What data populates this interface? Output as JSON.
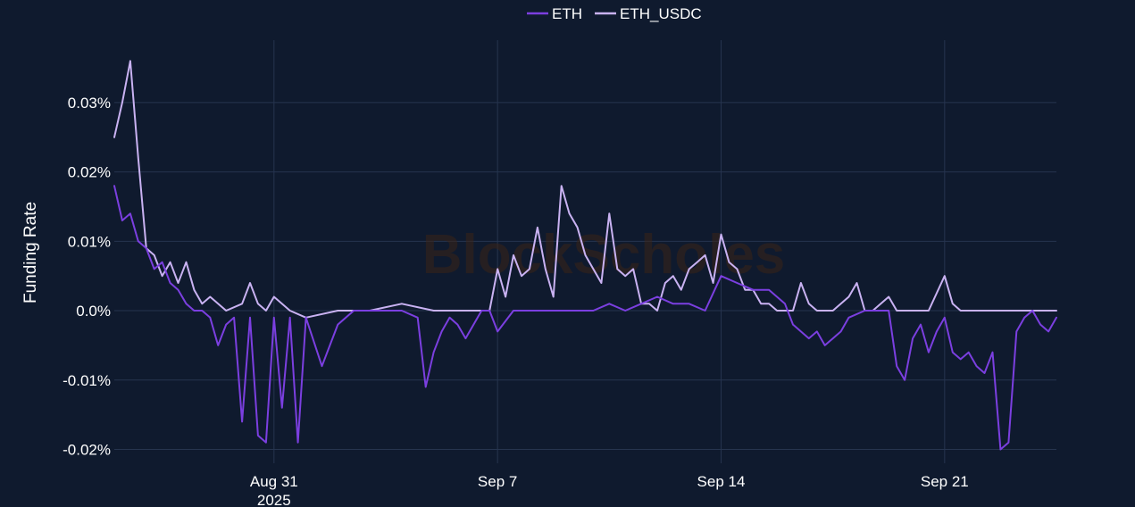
{
  "chart_data": {
    "type": "line",
    "ylabel": "Funding Rate",
    "ylim": [
      -0.022,
      0.039
    ],
    "xlim": [
      "2025-08-26T00:00",
      "2025-09-24T12:00"
    ],
    "y_ticks": [
      -0.02,
      -0.01,
      0.0,
      0.01,
      0.02,
      0.03
    ],
    "y_tick_labels": [
      "-0.02%",
      "-0.01%",
      "0.0%",
      "0.01%",
      "0.02%",
      "0.03%"
    ],
    "x_ticks": [
      "2025-08-31",
      "2025-09-07",
      "2025-09-14",
      "2025-09-21"
    ],
    "x_tick_labels": [
      "Aug 31",
      "Sep 7",
      "Sep 14",
      "Sep 21"
    ],
    "x_tick_sublabel": "2025",
    "grid": true,
    "legend": "top-center",
    "watermark": "BlockScholes",
    "colors": {
      "background": "#0f1a2e",
      "grid": "#26344f",
      "text": "#ffffff"
    },
    "series": [
      {
        "name": "ETH",
        "color": "#7b3fe0",
        "x": [
          "2025-08-26T00:00",
          "2025-08-26T06:00",
          "2025-08-26T12:00",
          "2025-08-26T18:00",
          "2025-08-27T00:00",
          "2025-08-27T06:00",
          "2025-08-27T12:00",
          "2025-08-27T18:00",
          "2025-08-28T00:00",
          "2025-08-28T06:00",
          "2025-08-28T12:00",
          "2025-08-28T18:00",
          "2025-08-29T00:00",
          "2025-08-29T06:00",
          "2025-08-29T12:00",
          "2025-08-29T18:00",
          "2025-08-30T00:00",
          "2025-08-30T06:00",
          "2025-08-30T12:00",
          "2025-08-30T18:00",
          "2025-08-31T00:00",
          "2025-08-31T06:00",
          "2025-08-31T12:00",
          "2025-08-31T18:00",
          "2025-09-01T00:00",
          "2025-09-01T12:00",
          "2025-09-02T00:00",
          "2025-09-02T12:00",
          "2025-09-03T00:00",
          "2025-09-03T12:00",
          "2025-09-04T00:00",
          "2025-09-04T12:00",
          "2025-09-04T18:00",
          "2025-09-05T00:00",
          "2025-09-05T06:00",
          "2025-09-05T12:00",
          "2025-09-05T18:00",
          "2025-09-06T00:00",
          "2025-09-06T12:00",
          "2025-09-06T18:00",
          "2025-09-07T00:00",
          "2025-09-07T12:00",
          "2025-09-08T00:00",
          "2025-09-09T00:00",
          "2025-09-10T00:00",
          "2025-09-10T12:00",
          "2025-09-11T00:00",
          "2025-09-11T12:00",
          "2025-09-12T00:00",
          "2025-09-12T12:00",
          "2025-09-13T00:00",
          "2025-09-13T12:00",
          "2025-09-14T00:00",
          "2025-09-14T12:00",
          "2025-09-15T00:00",
          "2025-09-15T12:00",
          "2025-09-16T00:00",
          "2025-09-16T06:00",
          "2025-09-16T12:00",
          "2025-09-16T18:00",
          "2025-09-17T00:00",
          "2025-09-17T06:00",
          "2025-09-17T12:00",
          "2025-09-17T18:00",
          "2025-09-18T00:00",
          "2025-09-18T12:00",
          "2025-09-19T00:00",
          "2025-09-19T06:00",
          "2025-09-19T12:00",
          "2025-09-19T18:00",
          "2025-09-20T00:00",
          "2025-09-20T06:00",
          "2025-09-20T12:00",
          "2025-09-20T18:00",
          "2025-09-21T00:00",
          "2025-09-21T06:00",
          "2025-09-21T12:00",
          "2025-09-21T18:00",
          "2025-09-22T00:00",
          "2025-09-22T06:00",
          "2025-09-22T12:00",
          "2025-09-22T18:00",
          "2025-09-23T00:00",
          "2025-09-23T06:00",
          "2025-09-23T12:00",
          "2025-09-23T18:00",
          "2025-09-24T00:00",
          "2025-09-24T06:00",
          "2025-09-24T12:00"
        ],
        "y": [
          0.018,
          0.013,
          0.014,
          0.01,
          0.009,
          0.006,
          0.007,
          0.004,
          0.003,
          0.001,
          0.0,
          0.0,
          -0.001,
          -0.005,
          -0.002,
          -0.001,
          -0.016,
          -0.001,
          -0.018,
          -0.019,
          -0.001,
          -0.014,
          -0.001,
          -0.019,
          -0.001,
          -0.008,
          -0.002,
          0.0,
          0.0,
          0.0,
          0.0,
          -0.001,
          -0.011,
          -0.006,
          -0.003,
          -0.001,
          -0.002,
          -0.004,
          0.0,
          0.0,
          -0.003,
          0.0,
          0.0,
          0.0,
          0.0,
          0.001,
          0.0,
          0.001,
          0.002,
          0.001,
          0.001,
          0.0,
          0.005,
          0.004,
          0.003,
          0.003,
          0.001,
          -0.002,
          -0.003,
          -0.004,
          -0.003,
          -0.005,
          -0.004,
          -0.003,
          -0.001,
          0.0,
          0.0,
          0.0,
          -0.008,
          -0.01,
          -0.004,
          -0.002,
          -0.006,
          -0.003,
          -0.001,
          -0.006,
          -0.007,
          -0.006,
          -0.008,
          -0.009,
          -0.006,
          -0.02,
          -0.019,
          -0.003,
          -0.001,
          0.0,
          -0.002,
          -0.003,
          -0.001
        ]
      },
      {
        "name": "ETH_USDC",
        "color": "#c9b2f2",
        "x": [
          "2025-08-26T00:00",
          "2025-08-26T06:00",
          "2025-08-26T12:00",
          "2025-08-26T18:00",
          "2025-08-27T00:00",
          "2025-08-27T06:00",
          "2025-08-27T12:00",
          "2025-08-27T18:00",
          "2025-08-28T00:00",
          "2025-08-28T06:00",
          "2025-08-28T12:00",
          "2025-08-28T18:00",
          "2025-08-29T00:00",
          "2025-08-29T12:00",
          "2025-08-30T00:00",
          "2025-08-30T06:00",
          "2025-08-30T12:00",
          "2025-08-30T18:00",
          "2025-08-31T00:00",
          "2025-08-31T12:00",
          "2025-09-01T00:00",
          "2025-09-02T00:00",
          "2025-09-03T00:00",
          "2025-09-04T00:00",
          "2025-09-05T00:00",
          "2025-09-06T00:00",
          "2025-09-06T06:00",
          "2025-09-06T12:00",
          "2025-09-06T18:00",
          "2025-09-07T00:00",
          "2025-09-07T06:00",
          "2025-09-07T12:00",
          "2025-09-07T18:00",
          "2025-09-08T00:00",
          "2025-09-08T06:00",
          "2025-09-08T12:00",
          "2025-09-08T18:00",
          "2025-09-09T00:00",
          "2025-09-09T06:00",
          "2025-09-09T12:00",
          "2025-09-09T18:00",
          "2025-09-10T00:00",
          "2025-09-10T06:00",
          "2025-09-10T12:00",
          "2025-09-10T18:00",
          "2025-09-11T00:00",
          "2025-09-11T06:00",
          "2025-09-11T12:00",
          "2025-09-11T18:00",
          "2025-09-12T00:00",
          "2025-09-12T06:00",
          "2025-09-12T12:00",
          "2025-09-12T18:00",
          "2025-09-13T00:00",
          "2025-09-13T06:00",
          "2025-09-13T12:00",
          "2025-09-13T18:00",
          "2025-09-14T00:00",
          "2025-09-14T06:00",
          "2025-09-14T12:00",
          "2025-09-14T18:00",
          "2025-09-15T00:00",
          "2025-09-15T06:00",
          "2025-09-15T12:00",
          "2025-09-15T18:00",
          "2025-09-16T00:00",
          "2025-09-16T06:00",
          "2025-09-16T12:00",
          "2025-09-16T18:00",
          "2025-09-17T00:00",
          "2025-09-17T12:00",
          "2025-09-18T00:00",
          "2025-09-18T06:00",
          "2025-09-18T12:00",
          "2025-09-18T18:00",
          "2025-09-19T00:00",
          "2025-09-19T06:00",
          "2025-09-19T12:00",
          "2025-09-20T00:00",
          "2025-09-20T12:00",
          "2025-09-21T00:00",
          "2025-09-21T06:00",
          "2025-09-21T12:00",
          "2025-09-21T18:00",
          "2025-09-22T00:00",
          "2025-09-22T06:00",
          "2025-09-22T12:00",
          "2025-09-22T18:00",
          "2025-09-23T00:00",
          "2025-09-24T00:00",
          "2025-09-24T12:00"
        ],
        "y": [
          0.025,
          0.03,
          0.036,
          0.022,
          0.009,
          0.008,
          0.005,
          0.007,
          0.004,
          0.007,
          0.003,
          0.001,
          0.002,
          0.0,
          0.001,
          0.004,
          0.001,
          0.0,
          0.002,
          0.0,
          -0.001,
          0.0,
          0.0,
          0.001,
          0.0,
          0.0,
          0.0,
          0.0,
          0.0,
          0.006,
          0.002,
          0.008,
          0.005,
          0.006,
          0.012,
          0.006,
          0.002,
          0.018,
          0.014,
          0.012,
          0.008,
          0.006,
          0.004,
          0.014,
          0.006,
          0.005,
          0.006,
          0.001,
          0.001,
          0.0,
          0.004,
          0.005,
          0.003,
          0.006,
          0.007,
          0.008,
          0.004,
          0.011,
          0.007,
          0.006,
          0.003,
          0.003,
          0.001,
          0.001,
          0.0,
          0.0,
          0.0,
          0.004,
          0.001,
          0.0,
          0.0,
          0.002,
          0.004,
          0.0,
          0.0,
          0.001,
          0.002,
          0.0,
          0.0,
          0.0,
          0.005,
          0.001,
          0.0,
          0.0,
          0.0,
          0.0,
          0.0,
          0.0,
          0.0,
          0.0,
          0.0
        ]
      }
    ]
  }
}
